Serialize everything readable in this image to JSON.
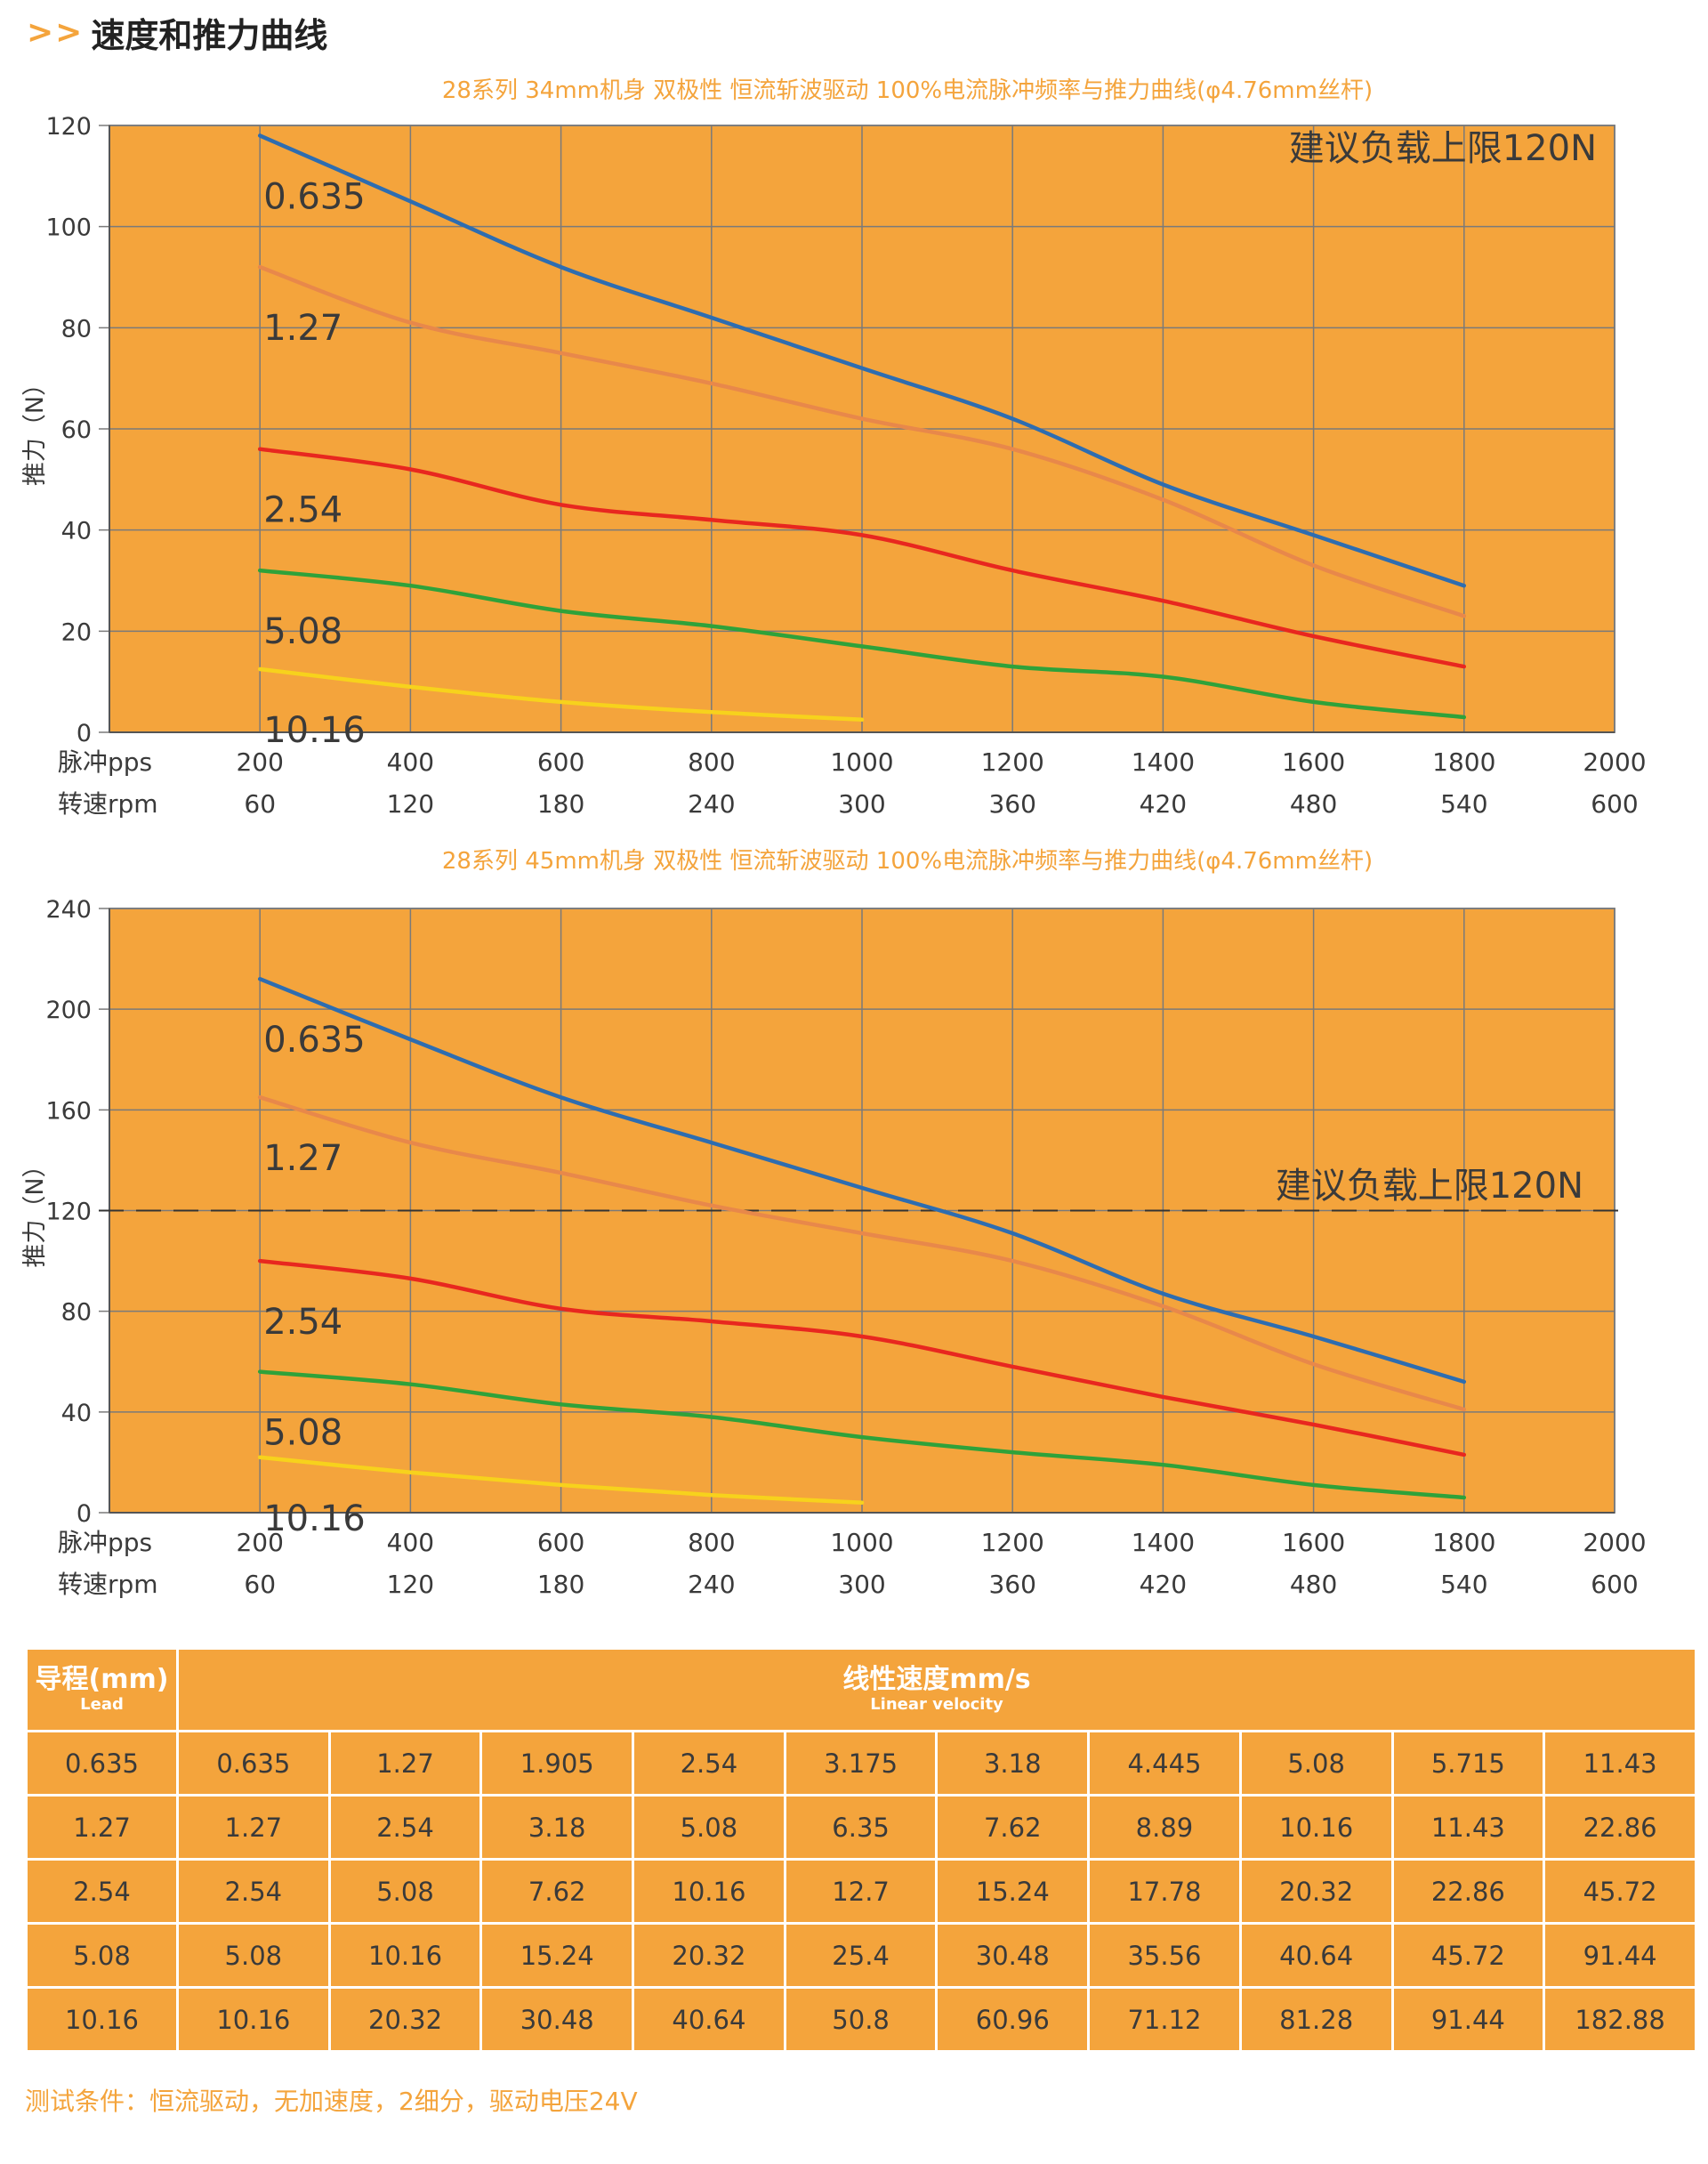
{
  "header": {
    "arrows": ">>",
    "title": "速度和推力曲线"
  },
  "chart_data": [
    {
      "type": "line",
      "title": "28系列 34mm机身 双极性 恒流斩波驱动 100%电流脉冲频率与推力曲线(φ4.76mm丝杆)",
      "ylabel": "推力（N）",
      "ylim": [
        0,
        120
      ],
      "yticks": [
        0,
        20,
        40,
        60,
        80,
        100,
        120
      ],
      "xlim": [
        0,
        2000
      ],
      "x_rows": [
        {
          "label": "脉冲pps",
          "ticks": [
            "200",
            "400",
            "600",
            "800",
            "1000",
            "1200",
            "1400",
            "1600",
            "1800",
            "2000"
          ]
        },
        {
          "label": "转速rpm",
          "ticks": [
            "60",
            "120",
            "180",
            "240",
            "300",
            "360",
            "420",
            "480",
            "540",
            "600"
          ]
        }
      ],
      "annotation": "建议负载上限120N",
      "limit_line": null,
      "grid": true,
      "series": [
        {
          "name": "0.635",
          "color": "#2e6db0",
          "x": [
            200,
            400,
            600,
            800,
            1000,
            1200,
            1400,
            1600,
            1800
          ],
          "y": [
            118,
            105,
            92,
            82,
            72,
            62,
            49,
            39,
            29
          ]
        },
        {
          "name": "1.27",
          "color": "#e8884a",
          "x": [
            200,
            400,
            600,
            800,
            1000,
            1200,
            1400,
            1600,
            1800
          ],
          "y": [
            92,
            81,
            75,
            69,
            62,
            56,
            46,
            33,
            23
          ]
        },
        {
          "name": "2.54",
          "color": "#e8271f",
          "x": [
            200,
            400,
            600,
            800,
            1000,
            1200,
            1400,
            1600,
            1800
          ],
          "y": [
            56,
            52,
            45,
            42,
            39,
            32,
            26,
            19,
            13
          ]
        },
        {
          "name": "5.08",
          "color": "#2fa23a",
          "x": [
            200,
            400,
            600,
            800,
            1000,
            1200,
            1400,
            1600,
            1800
          ],
          "y": [
            32,
            29,
            24,
            21,
            17,
            13,
            11,
            6,
            3
          ]
        },
        {
          "name": "10.16",
          "color": "#f7d21c",
          "x": [
            200,
            400,
            600,
            800,
            1000
          ],
          "y": [
            12.5,
            9,
            6,
            4,
            2.5
          ]
        }
      ]
    },
    {
      "type": "line",
      "title": "28系列 45mm机身 双极性 恒流斩波驱动 100%电流脉冲频率与推力曲线(φ4.76mm丝杆)",
      "ylabel": "推力（N）",
      "ylim": [
        0,
        240
      ],
      "yticks": [
        0,
        40,
        80,
        120,
        160,
        200,
        240
      ],
      "xlim": [
        0,
        2000
      ],
      "x_rows": [
        {
          "label": "脉冲pps",
          "ticks": [
            "200",
            "400",
            "600",
            "800",
            "1000",
            "1200",
            "1400",
            "1600",
            "1800",
            "2000"
          ]
        },
        {
          "label": "转速rpm",
          "ticks": [
            "60",
            "120",
            "180",
            "240",
            "300",
            "360",
            "420",
            "480",
            "540",
            "600"
          ]
        }
      ],
      "annotation": "建议负载上限120N",
      "limit_line": 120,
      "grid": true,
      "series": [
        {
          "name": "0.635",
          "color": "#2e6db0",
          "x": [
            200,
            400,
            600,
            800,
            1000,
            1200,
            1400,
            1600,
            1800
          ],
          "y": [
            212,
            188,
            165,
            147,
            129,
            111,
            87,
            70,
            52
          ]
        },
        {
          "name": "1.27",
          "color": "#e8884a",
          "x": [
            200,
            400,
            600,
            800,
            1000,
            1200,
            1400,
            1600,
            1800
          ],
          "y": [
            165,
            147,
            135,
            122,
            111,
            100,
            82,
            59,
            41
          ]
        },
        {
          "name": "2.54",
          "color": "#e8271f",
          "x": [
            200,
            400,
            600,
            800,
            1000,
            1200,
            1400,
            1600,
            1800
          ],
          "y": [
            100,
            93,
            81,
            76,
            70,
            58,
            46,
            35,
            23
          ]
        },
        {
          "name": "5.08",
          "color": "#2fa23a",
          "x": [
            200,
            400,
            600,
            800,
            1000,
            1200,
            1400,
            1600,
            1800
          ],
          "y": [
            56,
            51,
            43,
            38,
            30,
            24,
            19,
            11,
            6
          ]
        },
        {
          "name": "10.16",
          "color": "#f7d21c",
          "x": [
            200,
            400,
            600,
            800,
            1000
          ],
          "y": [
            22,
            16,
            11,
            7,
            4
          ]
        }
      ]
    }
  ],
  "table": {
    "header_left": {
      "main": "导程(mm)",
      "sub": "Lead"
    },
    "header_right": {
      "main": "线性速度mm/s",
      "sub": "Linear velocity"
    },
    "rows": [
      [
        "0.635",
        "0.635",
        "1.27",
        "1.905",
        "2.54",
        "3.175",
        "3.18",
        "4.445",
        "5.08",
        "5.715",
        "11.43"
      ],
      [
        "1.27",
        "1.27",
        "2.54",
        "3.18",
        "5.08",
        "6.35",
        "7.62",
        "8.89",
        "10.16",
        "11.43",
        "22.86"
      ],
      [
        "2.54",
        "2.54",
        "5.08",
        "7.62",
        "10.16",
        "12.7",
        "15.24",
        "17.78",
        "20.32",
        "22.86",
        "45.72"
      ],
      [
        "5.08",
        "5.08",
        "10.16",
        "15.24",
        "20.32",
        "25.4",
        "30.48",
        "35.56",
        "40.64",
        "45.72",
        "91.44"
      ],
      [
        "10.16",
        "10.16",
        "20.32",
        "30.48",
        "40.64",
        "50.8",
        "60.96",
        "71.12",
        "81.28",
        "91.44",
        "182.88"
      ]
    ]
  },
  "footnote": "测试条件：恒流驱动，无加速度，2细分，驱动电压24V",
  "colors": {
    "accent": "#f4a43c",
    "plot_bg": "#f4a43c",
    "grid": "#7a7a7a"
  }
}
